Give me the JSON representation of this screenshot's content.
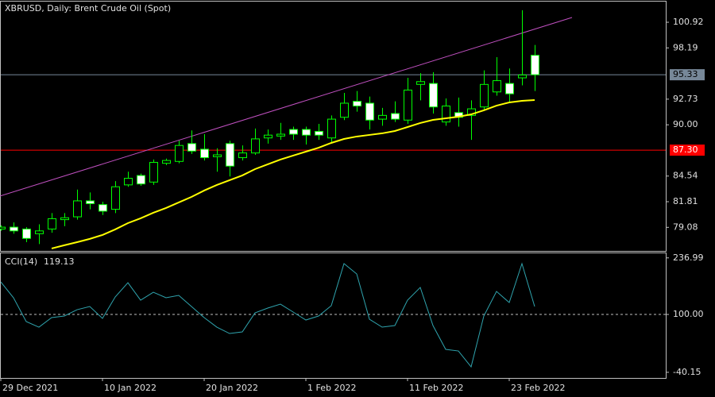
{
  "chart_data": [
    {
      "type": "candlestick",
      "title": "XBRUSD, Daily:  Brent Crude Oil (Spot)",
      "open": [
        78.9,
        79.1,
        78.9,
        78.4,
        78.9,
        79.9,
        80.2,
        81.9,
        81.5,
        81.0,
        83.6,
        84.6,
        83.9,
        85.9,
        86.1,
        88.0,
        87.4,
        86.6,
        88.0,
        86.5,
        87.0,
        88.6,
        88.8,
        89.5,
        89.5,
        89.3,
        88.6,
        90.8,
        92.5,
        92.3,
        90.6,
        91.2,
        90.5,
        94.3,
        94.4,
        90.3,
        91.3,
        91.0,
        91.9,
        93.5,
        94.4,
        95.0,
        97.4
      ],
      "high": [
        79.3,
        79.6,
        79.1,
        79.4,
        80.6,
        80.6,
        83.1,
        82.8,
        81.8,
        84.0,
        85.0,
        84.8,
        86.3,
        86.4,
        88.3,
        89.4,
        89.0,
        87.5,
        88.3,
        87.8,
        89.6,
        89.5,
        90.2,
        89.8,
        89.8,
        90.1,
        91.0,
        93.4,
        93.6,
        93.0,
        91.8,
        92.5,
        95.0,
        95.5,
        95.6,
        92.8,
        92.9,
        92.6,
        95.8,
        97.2,
        96.0,
        102.2,
        98.5
      ],
      "low": [
        78.7,
        78.4,
        77.5,
        77.3,
        78.5,
        79.2,
        79.9,
        81.0,
        80.4,
        80.6,
        83.4,
        83.5,
        83.6,
        85.7,
        85.9,
        86.9,
        86.2,
        85.0,
        84.5,
        86.2,
        86.8,
        88.0,
        88.4,
        88.4,
        87.9,
        88.4,
        88.0,
        90.5,
        91.4,
        89.5,
        89.9,
        90.3,
        90.1,
        92.6,
        91.2,
        89.9,
        89.8,
        88.4,
        91.5,
        93.1,
        92.4,
        94.2,
        93.6
      ],
      "close": [
        79.1,
        78.7,
        77.9,
        78.7,
        80.0,
        80.1,
        81.9,
        81.6,
        80.8,
        83.4,
        84.3,
        83.7,
        86.0,
        86.2,
        87.8,
        87.2,
        86.5,
        86.8,
        85.6,
        87.0,
        88.5,
        88.9,
        89.0,
        89.0,
        88.9,
        88.9,
        90.6,
        92.3,
        92.0,
        90.5,
        91.0,
        90.6,
        93.7,
        94.6,
        91.9,
        92.0,
        90.8,
        91.7,
        94.3,
        94.7,
        93.3,
        95.3,
        95.33
      ],
      "up_color": "#00ff00",
      "down_color": "#ffffff",
      "ma": {
        "color": "#ffff00",
        "values": [
          null,
          null,
          null,
          null,
          76.83,
          77.17,
          77.5,
          77.85,
          78.27,
          78.86,
          79.53,
          80.04,
          80.63,
          81.14,
          81.73,
          82.32,
          83.0,
          83.59,
          84.1,
          84.61,
          85.28,
          85.79,
          86.3,
          86.72,
          87.14,
          87.56,
          88.07,
          88.49,
          88.75,
          88.92,
          89.09,
          89.34,
          89.76,
          90.19,
          90.52,
          90.69,
          90.86,
          91.11,
          91.54,
          92.04,
          92.38,
          92.55,
          92.64
        ]
      },
      "trendline": {
        "color": "#c050c0",
        "values": [
          82.41,
          101.43
        ]
      },
      "hline": {
        "value": 87.3,
        "label": "87.30",
        "color": "#ff0000"
      },
      "price_line": {
        "value": 95.33,
        "color": "#778899"
      },
      "ylim": [
        76.57,
        103.12
      ],
      "yticks": [
        100.92,
        98.19,
        92.73,
        {
          "value": 90,
          "label": "90.00"
        },
        84.54,
        81.81,
        79.08
      ]
    },
    {
      "type": "line",
      "name": "CCI(14)",
      "last": 119.13,
      "color": "#2fa4ae",
      "categories": [
        "29 Dec 2021",
        null,
        null,
        null,
        null,
        null,
        null,
        null,
        "10 Jan 2022",
        null,
        null,
        null,
        null,
        null,
        null,
        null,
        "20 Jan 2022",
        null,
        null,
        null,
        null,
        null,
        null,
        null,
        "1 Feb 2022",
        null,
        null,
        null,
        null,
        null,
        null,
        null,
        "11 Feb 2022",
        null,
        null,
        null,
        null,
        null,
        null,
        null,
        "23 Feb 2022",
        null,
        null
      ],
      "values": [
        178.8,
        140.4,
        82.7,
        69.2,
        92.3,
        96.2,
        111.5,
        119.2,
        90.4,
        142.3,
        176.9,
        134.6,
        153.8,
        140.4,
        146.2,
        119.2,
        92.3,
        69.2,
        53.8,
        57.7,
        103.8,
        115.4,
        125.0,
        105.8,
        86.5,
        96.2,
        121.2,
        223.1,
        198.1,
        88.5,
        69.2,
        73.1,
        134.6,
        165.4,
        73.1,
        15.4,
        11.5,
        -26.9,
        96.2,
        155.8,
        128.8,
        223.1,
        119.13
      ],
      "ylim": [
        -53.8,
        248.1
      ],
      "yticks": [
        236.99,
        {
          "value": 100,
          "label": "100.00"
        },
        -40.15
      ]
    }
  ]
}
